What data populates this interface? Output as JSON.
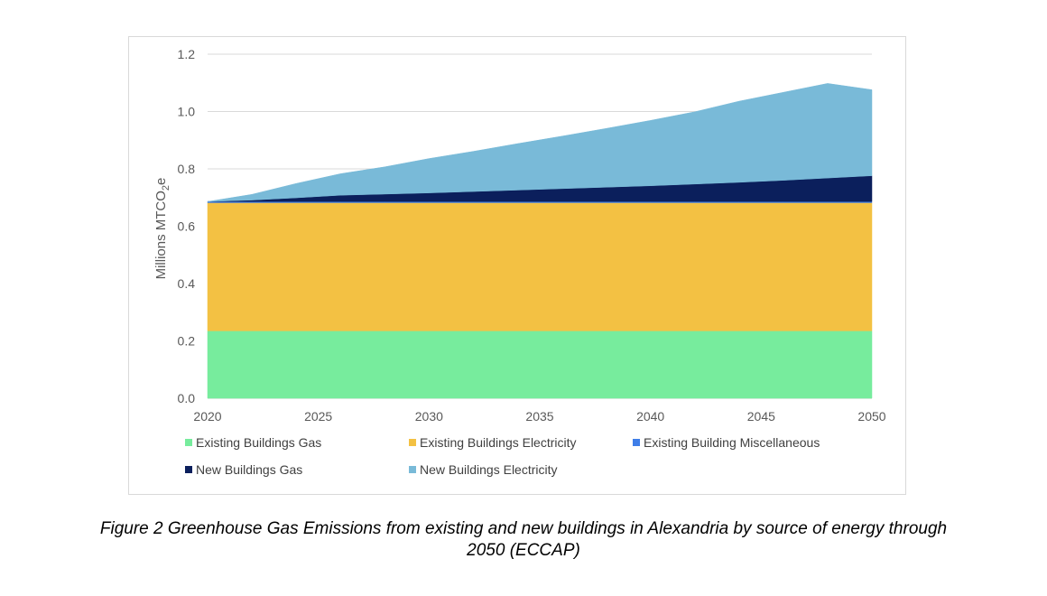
{
  "caption": {
    "line1": "Figure 2 Greenhouse Gas Emissions from existing and new buildings in Alexandria by source of energy through",
    "line2": "2050 (ECCAP)"
  },
  "chart_data": {
    "type": "area",
    "stacked": true,
    "x": [
      2020,
      2022,
      2024,
      2026,
      2028,
      2030,
      2032,
      2034,
      2036,
      2038,
      2040,
      2042,
      2044,
      2046,
      2048,
      2050
    ],
    "x_ticks": [
      "2020",
      "2025",
      "2030",
      "2035",
      "2040",
      "2045",
      "2050"
    ],
    "y_ticks": [
      "0.0",
      "0.2",
      "0.4",
      "0.6",
      "0.8",
      "1.0",
      "1.2"
    ],
    "ylim": [
      0,
      1.2
    ],
    "xlim": [
      2020,
      2050
    ],
    "ylabel": "Millions MTCO",
    "ylabel_sub": "2",
    "ylabel_suffix": "e",
    "xlabel": "",
    "title": "",
    "grid": "horizontal",
    "legend_position": "bottom",
    "series": [
      {
        "name": "Existing Buildings Gas",
        "color": "#77ec9d",
        "values": [
          0.235,
          0.235,
          0.235,
          0.235,
          0.235,
          0.235,
          0.235,
          0.235,
          0.235,
          0.235,
          0.235,
          0.235,
          0.235,
          0.235,
          0.235,
          0.235
        ]
      },
      {
        "name": "Existing Buildings Electricity",
        "color": "#f3c143",
        "values": [
          0.447,
          0.447,
          0.447,
          0.447,
          0.447,
          0.447,
          0.447,
          0.447,
          0.447,
          0.447,
          0.447,
          0.447,
          0.447,
          0.447,
          0.447,
          0.447
        ]
      },
      {
        "name": "Existing Building Miscellaneous",
        "color": "#3f7ee8",
        "values": [
          0.004,
          0.004,
          0.004,
          0.004,
          0.004,
          0.004,
          0.004,
          0.004,
          0.004,
          0.004,
          0.004,
          0.004,
          0.004,
          0.004,
          0.004,
          0.004
        ]
      },
      {
        "name": "New Buildings Gas",
        "color": "#0b1f5c",
        "values": [
          0.0,
          0.005,
          0.013,
          0.022,
          0.026,
          0.03,
          0.035,
          0.04,
          0.045,
          0.05,
          0.055,
          0.061,
          0.067,
          0.074,
          0.082,
          0.09
        ]
      },
      {
        "name": "New Buildings Electricity",
        "color": "#79bad8",
        "values": [
          0.0,
          0.02,
          0.05,
          0.075,
          0.095,
          0.12,
          0.14,
          0.162,
          0.183,
          0.205,
          0.228,
          0.252,
          0.283,
          0.307,
          0.33,
          0.3
        ]
      }
    ]
  }
}
